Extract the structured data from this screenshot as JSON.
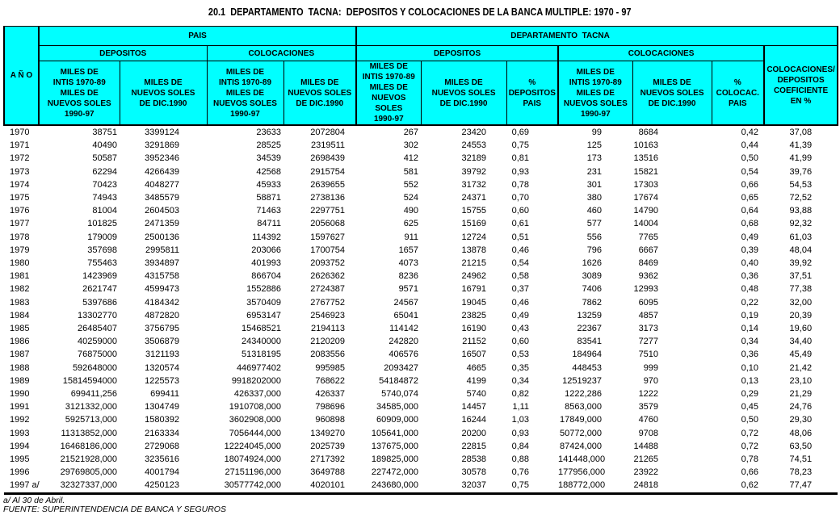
{
  "title": "20.1  DEPARTAMENTO  TACNA:  DEPOSITOS Y COLOCACIONES DE LA BANCA MULTIPLE: 1970 - 97",
  "colors": {
    "header_bg": "#00FFFF",
    "border": "#000000",
    "text": "#000000",
    "page_bg": "#FFFFFF"
  },
  "table": {
    "year_header": "A Ñ O",
    "group_pais": "PAIS",
    "group_tacna": "DEPARTAMENTO  TACNA",
    "sub_depositos": "DEPOSITOS",
    "sub_colocaciones": "COLOCACIONES",
    "col_miles_intis": "MILES DE\nINTIS 1970-89\nMILES DE\nNUEVOS SOLES\n1990-97",
    "col_miles_dic1990": "MILES DE\nNUEVOS SOLES\nDE DIC.1990",
    "col_pct_depositos": "%\nDEPOSITOS\nPAIS",
    "col_pct_colocac": "%\nCOLOCAC.\nPAIS",
    "col_coeficiente": "COLOCACIONES/\nDEPOSITOS\nCOEFICIENTE\nEN %",
    "rows": [
      [
        "1970",
        "38751",
        "3399124",
        "23633",
        "2072804",
        "267",
        "23420",
        "0,69",
        "99",
        "8684",
        "0,42",
        "37,08"
      ],
      [
        "1971",
        "40490",
        "3291869",
        "28525",
        "2319511",
        "302",
        "24553",
        "0,75",
        "125",
        "10163",
        "0,44",
        "41,39"
      ],
      [
        "1972",
        "50587",
        "3952346",
        "34539",
        "2698439",
        "412",
        "32189",
        "0,81",
        "173",
        "13516",
        "0,50",
        "41,99"
      ],
      [
        "1973",
        "62294",
        "4266439",
        "42568",
        "2915754",
        "581",
        "39792",
        "0,93",
        "231",
        "15821",
        "0,54",
        "39,76"
      ],
      [
        "1974",
        "70423",
        "4048277",
        "45933",
        "2639655",
        "552",
        "31732",
        "0,78",
        "301",
        "17303",
        "0,66",
        "54,53"
      ],
      [
        "1975",
        "74943",
        "3485579",
        "58871",
        "2738136",
        "524",
        "24371",
        "0,70",
        "380",
        "17674",
        "0,65",
        "72,52"
      ],
      [
        "1976",
        "81004",
        "2604503",
        "71463",
        "2297751",
        "490",
        "15755",
        "0,60",
        "460",
        "14790",
        "0,64",
        "93,88"
      ],
      [
        "1977",
        "101825",
        "2471359",
        "84711",
        "2056068",
        "625",
        "15169",
        "0,61",
        "577",
        "14004",
        "0,68",
        "92,32"
      ],
      [
        "1978",
        "179009",
        "2500136",
        "114392",
        "1597627",
        "911",
        "12724",
        "0,51",
        "556",
        "7765",
        "0,49",
        "61,03"
      ],
      [
        "1979",
        "357698",
        "2995811",
        "203066",
        "1700754",
        "1657",
        "13878",
        "0,46",
        "796",
        "6667",
        "0,39",
        "48,04"
      ],
      [
        "1980",
        "755463",
        "3934897",
        "401993",
        "2093752",
        "4073",
        "21215",
        "0,54",
        "1626",
        "8469",
        "0,40",
        "39,92"
      ],
      [
        "1981",
        "1423969",
        "4315758",
        "866704",
        "2626362",
        "8236",
        "24962",
        "0,58",
        "3089",
        "9362",
        "0,36",
        "37,51"
      ],
      [
        "1982",
        "2621747",
        "4599473",
        "1552886",
        "2724387",
        "9571",
        "16791",
        "0,37",
        "7406",
        "12993",
        "0,48",
        "77,38"
      ],
      [
        "1983",
        "5397686",
        "4184342",
        "3570409",
        "2767752",
        "24567",
        "19045",
        "0,46",
        "7862",
        "6095",
        "0,22",
        "32,00"
      ],
      [
        "1984",
        "13302770",
        "4872820",
        "6953147",
        "2546923",
        "65041",
        "23825",
        "0,49",
        "13259",
        "4857",
        "0,19",
        "20,39"
      ],
      [
        "1985",
        "26485407",
        "3756795",
        "15468521",
        "2194113",
        "114142",
        "16190",
        "0,43",
        "22367",
        "3173",
        "0,14",
        "19,60"
      ],
      [
        "1986",
        "40259000",
        "3506879",
        "24340000",
        "2120209",
        "242820",
        "21152",
        "0,60",
        "83541",
        "7277",
        "0,34",
        "34,40"
      ],
      [
        "1987",
        "76875000",
        "3121193",
        "51318195",
        "2083556",
        "406576",
        "16507",
        "0,53",
        "184964",
        "7510",
        "0,36",
        "45,49"
      ],
      [
        "1988",
        "592648000",
        "1320574",
        "446977402",
        "995985",
        "2093427",
        "4665",
        "0,35",
        "448453",
        "999",
        "0,10",
        "21,42"
      ],
      [
        "1989",
        "15814594000",
        "1225573",
        "9918202000",
        "768622",
        "54184872",
        "4199",
        "0,34",
        "12519237",
        "970",
        "0,13",
        "23,10"
      ],
      [
        "1990",
        "699411,256",
        "699411",
        "426337,000",
        "426337",
        "5740,074",
        "5740",
        "0,82",
        "1222,286",
        "1222",
        "0,29",
        "21,29"
      ],
      [
        "1991",
        "3121332,000",
        "1304749",
        "1910708,000",
        "798696",
        "34585,000",
        "14457",
        "1,11",
        "8563,000",
        "3579",
        "0,45",
        "24,76"
      ],
      [
        "1992",
        "5925713,000",
        "1580392",
        "3602908,000",
        "960898",
        "60909,000",
        "16244",
        "1,03",
        "17849,000",
        "4760",
        "0,50",
        "29,30"
      ],
      [
        "1993",
        "11313852,000",
        "2163334",
        "7056444,000",
        "1349270",
        "105641,000",
        "20200",
        "0,93",
        "50772,000",
        "9708",
        "0,72",
        "48,06"
      ],
      [
        "1994",
        "16468186,000",
        "2729068",
        "12224045,000",
        "2025739",
        "137675,000",
        "22815",
        "0,84",
        "87424,000",
        "14488",
        "0,72",
        "63,50"
      ],
      [
        "1995",
        "21521928,000",
        "3235616",
        "18074924,000",
        "2717392",
        "189825,000",
        "28538",
        "0,88",
        "141448,000",
        "21265",
        "0,78",
        "74,51"
      ],
      [
        "1996",
        "29769805,000",
        "4001794",
        "27151196,000",
        "3649788",
        "227472,000",
        "30578",
        "0,76",
        "177956,000",
        "23922",
        "0,66",
        "78,23"
      ],
      [
        "1997 a/",
        "32327337,000",
        "4250123",
        "30577742,000",
        "4020101",
        "243680,000",
        "32037",
        "0,75",
        "188772,000",
        "24818",
        "0,62",
        "77,47"
      ]
    ]
  },
  "footnotes": {
    "note_a": "a/ Al 30 de Abril.",
    "source": "FUENTE: SUPERINTENDENCIA DE BANCA Y SEGUROS"
  }
}
